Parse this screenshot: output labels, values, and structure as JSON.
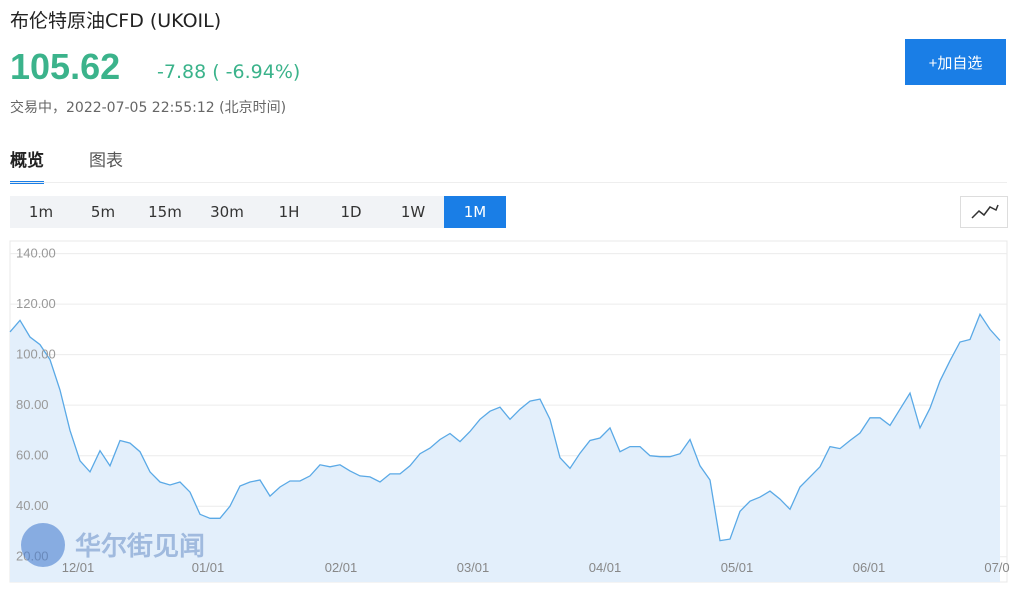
{
  "header": {
    "title": "布伦特原油CFD (UKOIL)",
    "price": "105.62",
    "change": "-7.88 ( -6.94%)",
    "status": "交易中，2022-07-05 22:55:12 (北京时间)",
    "add_button": "+加自选"
  },
  "tabs": [
    {
      "label": "概览",
      "active": true
    },
    {
      "label": "图表",
      "active": false
    }
  ],
  "periods": [
    {
      "label": "1m",
      "active": false
    },
    {
      "label": "5m",
      "active": false
    },
    {
      "label": "15m",
      "active": false
    },
    {
      "label": "30m",
      "active": false
    },
    {
      "label": "1H",
      "active": false
    },
    {
      "label": "1D",
      "active": false
    },
    {
      "label": "1W",
      "active": false
    },
    {
      "label": "1M",
      "active": true
    }
  ],
  "watermark": "华尔街见闻",
  "chart_data": {
    "type": "area",
    "line_color": "#5aa9e6",
    "fill_color": "#e3effb",
    "grid": true,
    "values": [
      109,
      113.6,
      107,
      104,
      98,
      86,
      70,
      58,
      53.6,
      62,
      56,
      66,
      65,
      61.6,
      53.6,
      49.6,
      48.4,
      49.6,
      45.6,
      36.8,
      35.2,
      35.2,
      40,
      48,
      49.6,
      50.4,
      44,
      47.6,
      50,
      50,
      52,
      56.4,
      55.6,
      56.4,
      54,
      52,
      51.6,
      49.6,
      52.8,
      52.8,
      56,
      60.8,
      63,
      66.4,
      68.8,
      65.6,
      69.6,
      74.4,
      77.6,
      79.2,
      74.4,
      78.4,
      81.6,
      82.4,
      74.4,
      59.2,
      55,
      61,
      66,
      67,
      71,
      61.6,
      63.6,
      63.6,
      60,
      59.6,
      59.6,
      60.8,
      66.4,
      56,
      50.4,
      26.4,
      27,
      38,
      42,
      43.6,
      46,
      42.8,
      38.8,
      47.6,
      51.6,
      55.6,
      63.6,
      62.8,
      66,
      69,
      75,
      75,
      72,
      78.4,
      84.8,
      71,
      78.8,
      89.6,
      97.6,
      105,
      106,
      116,
      110,
      105.6
    ],
    "xlim": [
      0,
      99.7
    ],
    "xticks": [
      {
        "value": 6.8,
        "label": "12/01"
      },
      {
        "value": 19.8,
        "label": "01/01"
      },
      {
        "value": 33.1,
        "label": "02/01"
      },
      {
        "value": 46.3,
        "label": "03/01"
      },
      {
        "value": 59.5,
        "label": "04/01"
      },
      {
        "value": 72.7,
        "label": "05/01"
      },
      {
        "value": 85.9,
        "label": "06/01"
      },
      {
        "value": 98.7,
        "label": "07/0"
      }
    ],
    "ylim": [
      10,
      145
    ],
    "yticks": [
      {
        "value": 20,
        "label": "20.00"
      },
      {
        "value": 40,
        "label": "40.00"
      },
      {
        "value": 60,
        "label": "60.00"
      },
      {
        "value": 80,
        "label": "80.00"
      },
      {
        "value": 100,
        "label": "100.00"
      },
      {
        "value": 120,
        "label": "120.00"
      },
      {
        "value": 140,
        "label": "140.00"
      }
    ]
  }
}
